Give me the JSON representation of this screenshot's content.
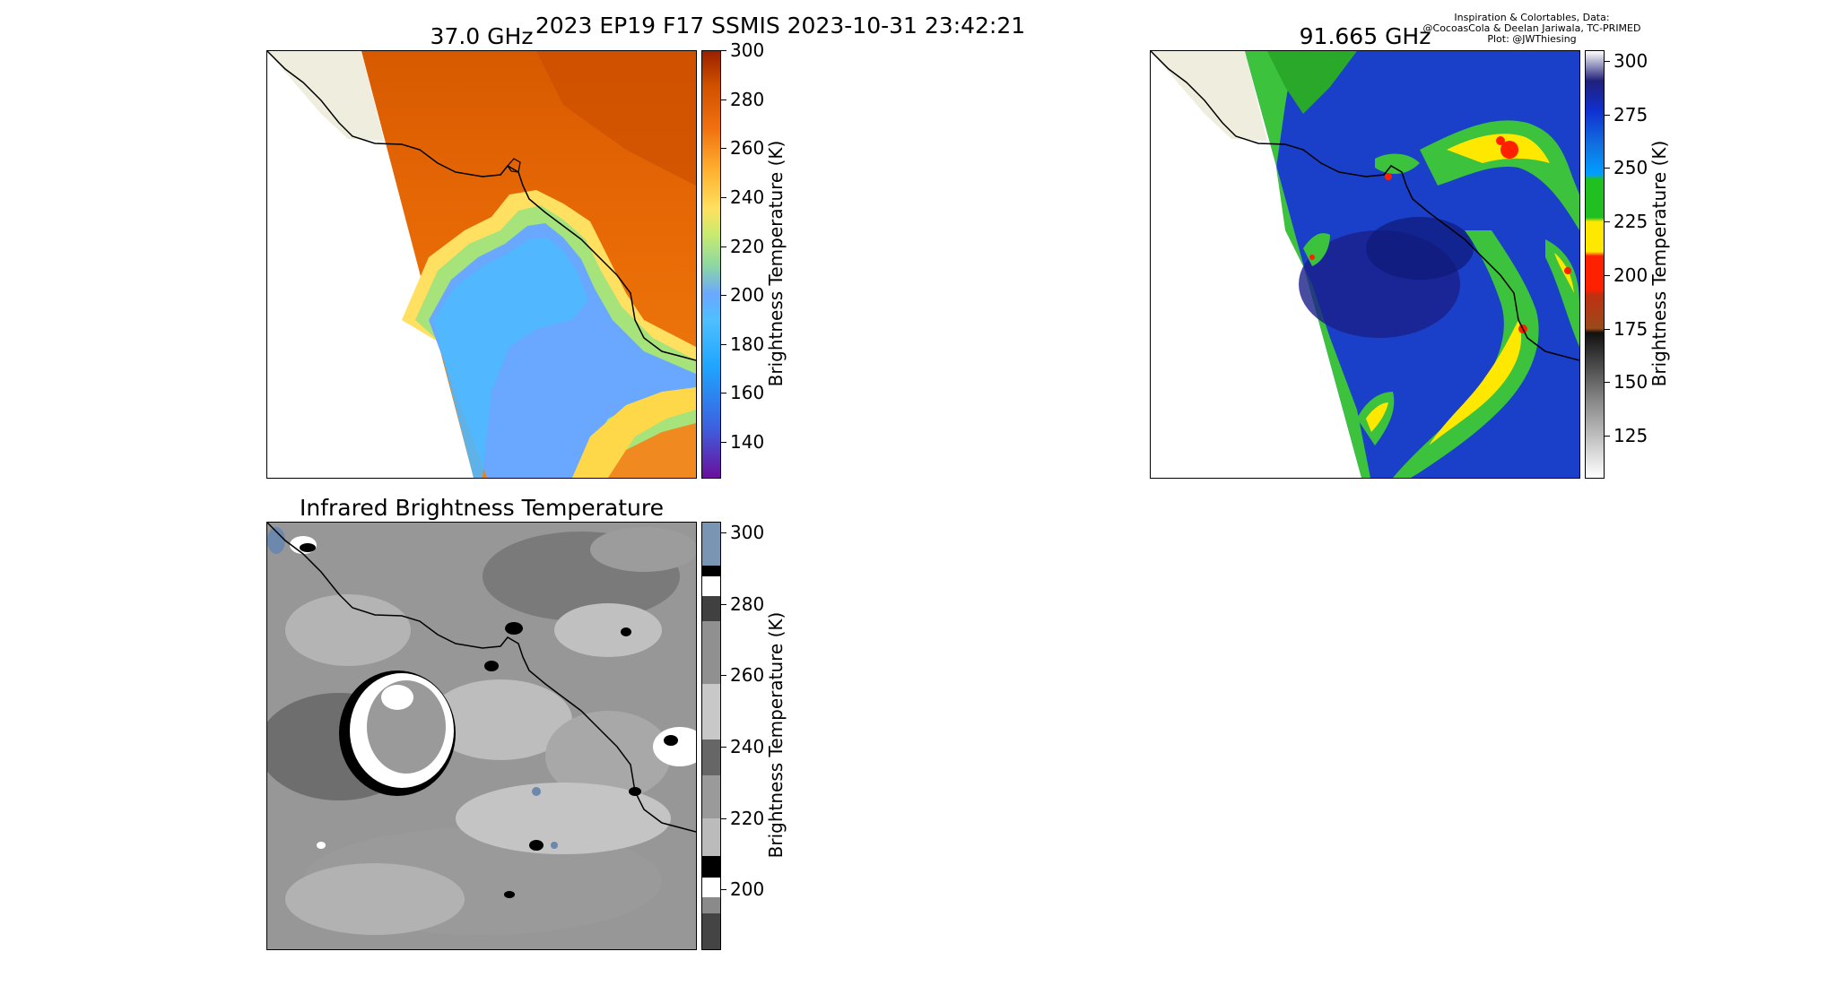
{
  "figure": {
    "suptitle": "2023 EP19 F17 SSMIS 2023-10-31 23:42:21",
    "credit_lines": [
      "Inspiration & Colortables, Data:",
      "@CocoasCola & Deelan Jariwala, TC-PRIMED",
      "Plot: @JWThiesing"
    ]
  },
  "chart_data": [
    {
      "type": "heatmap",
      "title": "37.0 GHz",
      "colorbar": {
        "label": "Brightness Temperature (K)",
        "range": [
          125,
          300
        ],
        "ticks": [
          140,
          160,
          180,
          200,
          220,
          240,
          260,
          280,
          300
        ],
        "colormap": [
          "#6a0f9c",
          "#3c62e0",
          "#1fa4ff",
          "#4fbfff",
          "#6aa8ff",
          "#8fd8a0",
          "#c8ea70",
          "#ffe060",
          "#ffb030",
          "#f07010",
          "#d05000",
          "#9a2000"
        ]
      },
      "field_description": "swath over Pacific coast of Mexico; warm (~260-290 K) over land, cool (~180-200 K) over ocean with greenish-yellow band",
      "land_color": "#efedde"
    },
    {
      "type": "heatmap",
      "title": "91.665 GHz",
      "colorbar": {
        "label": "Brightness Temperature (K)",
        "range": [
          105,
          305
        ],
        "ticks": [
          125,
          150,
          175,
          200,
          225,
          250,
          275,
          300
        ],
        "colormap": [
          "#ffffff",
          "#888888",
          "#111111",
          "#9a4a1a",
          "#ff2000",
          "#ffe800",
          "#20c020",
          "#00a0ff",
          "#1030d0",
          "#20207a",
          "#ffffff"
        ]
      },
      "land_color": "#efedde"
    },
    {
      "type": "heatmap",
      "title": "Infrared Brightness Temperature",
      "colorbar": {
        "label": "Brightness Temperature (K)",
        "range": [
          183,
          303
        ],
        "ticks": [
          200,
          220,
          240,
          260,
          280,
          300
        ],
        "colormap": [
          "#444444",
          "#8a8a8a",
          "#ffffff",
          "#000000",
          "#bbbbbb",
          "#9a9a9a",
          "#666666",
          "#c8c8c8",
          "#909090",
          "#404040",
          "#ffffff",
          "#000000",
          "#7a94b4"
        ]
      }
    }
  ],
  "colors": {
    "coastline": "#000000",
    "axis_border": "#000000"
  }
}
